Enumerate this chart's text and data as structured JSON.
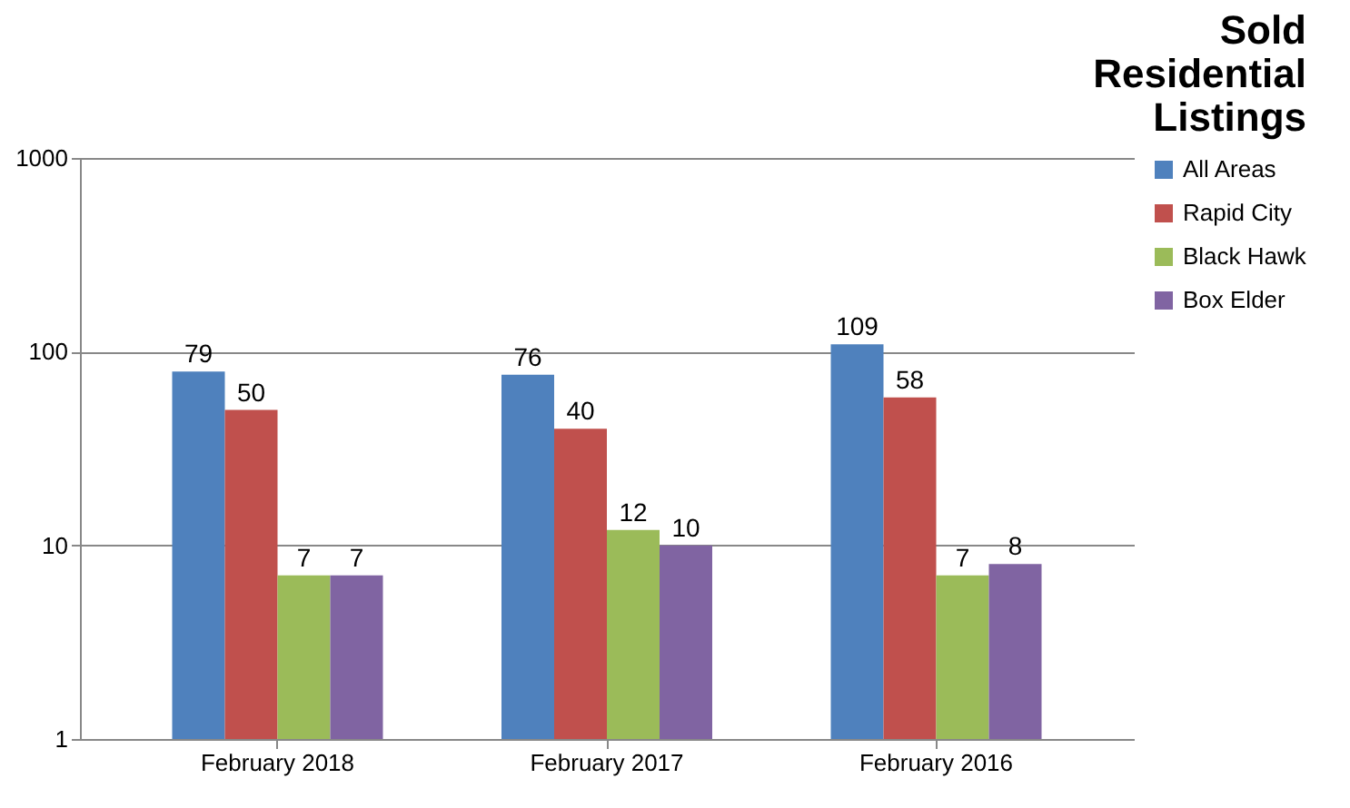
{
  "chart_data": {
    "type": "bar",
    "title": "Sold Residential Listings",
    "categories": [
      "February 2018",
      "February 2017",
      "February 2016"
    ],
    "series": [
      {
        "name": "All Areas",
        "color": "#4f81bd",
        "values": [
          79,
          76,
          109
        ]
      },
      {
        "name": "Rapid City",
        "color": "#c0504d",
        "values": [
          50,
          40,
          58
        ]
      },
      {
        "name": "Black Hawk",
        "color": "#9bbb59",
        "values": [
          7,
          12,
          7
        ]
      },
      {
        "name": "Box Elder",
        "color": "#8064a2",
        "values": [
          7,
          10,
          8
        ]
      }
    ],
    "log": "y",
    "ylim": [
      1,
      1000
    ],
    "yticks": [
      1,
      10,
      100,
      1000
    ],
    "grid": "y",
    "legend": "right",
    "data_labels": true
  }
}
